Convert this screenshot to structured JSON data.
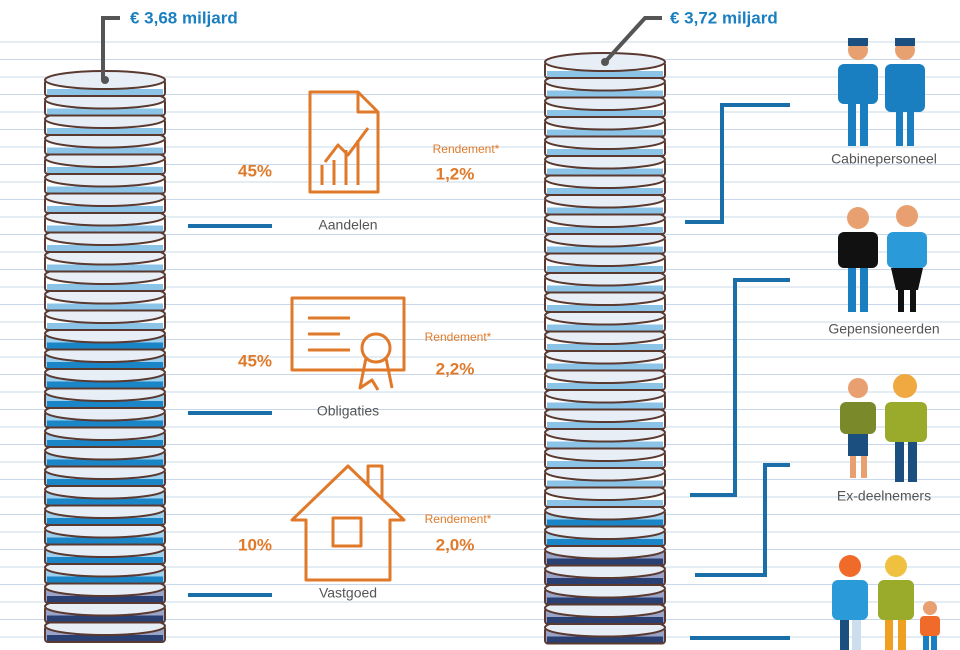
{
  "totals": {
    "left": "€ 3,68 miljard",
    "right": "€ 3,72 miljard"
  },
  "assets": [
    {
      "label": "Aandelen",
      "share": "45%",
      "return_label": "Rendement*",
      "return": "1,2%"
    },
    {
      "label": "Obligaties",
      "share": "45%",
      "return_label": "Rendement*",
      "return": "2,2%"
    },
    {
      "label": "Vastgoed",
      "share": "10%",
      "return_label": "Rendement*",
      "return": "2,0%"
    }
  ],
  "groups": [
    "Cabinepersoneel",
    "Gepensioneerden",
    "Ex-deelnemers"
  ]
}
